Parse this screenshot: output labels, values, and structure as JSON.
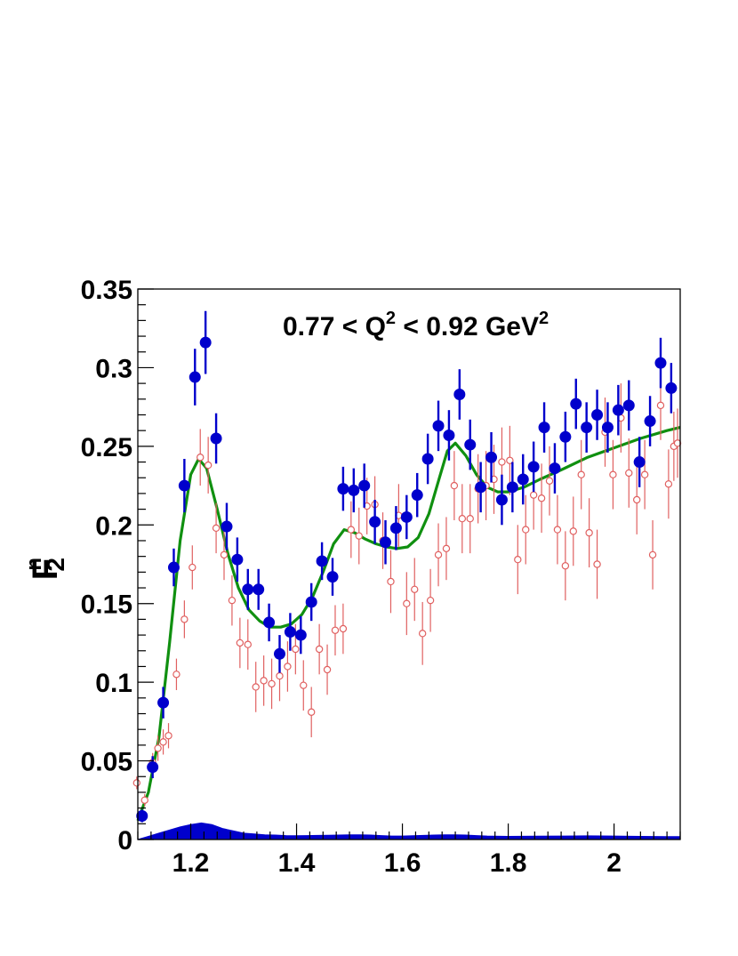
{
  "chart_data": {
    "type": "scatter",
    "annotation": {
      "prefix": "0.77 < Q",
      "sup1": "2",
      "middle": " < 0.92 GeV",
      "sup2": "2"
    },
    "ylabel": {
      "main": "F",
      "sup": "n",
      "sub": "2"
    },
    "xlabel": "",
    "xlim": [
      1.1,
      2.125
    ],
    "ylim": [
      0,
      0.35
    ],
    "x_ticks": [
      "1.2",
      "1.4",
      "1.6",
      "1.8",
      "2"
    ],
    "x_tick_values": [
      1.2,
      1.4,
      1.6,
      1.8,
      2.0
    ],
    "y_ticks": [
      "0",
      "0.05",
      "0.1",
      "0.15",
      "0.2",
      "0.25",
      "0.3",
      "0.35"
    ],
    "y_tick_values": [
      0,
      0.05,
      0.1,
      0.15,
      0.2,
      0.25,
      0.3,
      0.35
    ],
    "colors": {
      "series_a": "#0000cc",
      "series_b": "#e06060",
      "curve": "#109010",
      "band": "#0000cc"
    },
    "series": [
      {
        "marker": "filled-circle",
        "color": "#0000cc",
        "points": [
          [
            1.108,
            0.015,
            0.004
          ],
          [
            1.128,
            0.046,
            0.007
          ],
          [
            1.148,
            0.087,
            0.01
          ],
          [
            1.168,
            0.173,
            0.012
          ],
          [
            1.188,
            0.225,
            0.017
          ],
          [
            1.208,
            0.294,
            0.018
          ],
          [
            1.228,
            0.316,
            0.02
          ],
          [
            1.248,
            0.255,
            0.016
          ],
          [
            1.268,
            0.199,
            0.015
          ],
          [
            1.288,
            0.178,
            0.014
          ],
          [
            1.308,
            0.159,
            0.013
          ],
          [
            1.328,
            0.159,
            0.013
          ],
          [
            1.348,
            0.138,
            0.012
          ],
          [
            1.368,
            0.118,
            0.012
          ],
          [
            1.388,
            0.132,
            0.012
          ],
          [
            1.408,
            0.13,
            0.012
          ],
          [
            1.428,
            0.151,
            0.012
          ],
          [
            1.448,
            0.177,
            0.012
          ],
          [
            1.468,
            0.167,
            0.012
          ],
          [
            1.488,
            0.223,
            0.014
          ],
          [
            1.508,
            0.222,
            0.014
          ],
          [
            1.528,
            0.225,
            0.014
          ],
          [
            1.548,
            0.202,
            0.014
          ],
          [
            1.568,
            0.189,
            0.014
          ],
          [
            1.588,
            0.198,
            0.014
          ],
          [
            1.608,
            0.205,
            0.014
          ],
          [
            1.628,
            0.219,
            0.014
          ],
          [
            1.648,
            0.242,
            0.016
          ],
          [
            1.668,
            0.263,
            0.016
          ],
          [
            1.688,
            0.257,
            0.016
          ],
          [
            1.708,
            0.283,
            0.016
          ],
          [
            1.728,
            0.251,
            0.016
          ],
          [
            1.748,
            0.224,
            0.016
          ],
          [
            1.768,
            0.243,
            0.016
          ],
          [
            1.788,
            0.216,
            0.016
          ],
          [
            1.808,
            0.224,
            0.016
          ],
          [
            1.828,
            0.229,
            0.016
          ],
          [
            1.848,
            0.237,
            0.016
          ],
          [
            1.868,
            0.262,
            0.016
          ],
          [
            1.888,
            0.236,
            0.016
          ],
          [
            1.908,
            0.256,
            0.016
          ],
          [
            1.928,
            0.277,
            0.016
          ],
          [
            1.948,
            0.262,
            0.016
          ],
          [
            1.968,
            0.27,
            0.016
          ],
          [
            1.988,
            0.262,
            0.016
          ],
          [
            2.008,
            0.273,
            0.016
          ],
          [
            2.028,
            0.276,
            0.016
          ],
          [
            2.048,
            0.24,
            0.016
          ],
          [
            2.068,
            0.266,
            0.016
          ],
          [
            2.088,
            0.303,
            0.016
          ],
          [
            2.108,
            0.287,
            0.016
          ]
        ]
      },
      {
        "marker": "open-circle",
        "color": "#e06060",
        "points": [
          [
            1.098,
            0.036,
            0.004
          ],
          [
            1.113,
            0.025,
            0.004
          ],
          [
            1.128,
            0.049,
            0.006
          ],
          [
            1.138,
            0.058,
            0.008
          ],
          [
            1.148,
            0.062,
            0.008
          ],
          [
            1.158,
            0.066,
            0.008
          ],
          [
            1.173,
            0.105,
            0.01
          ],
          [
            1.188,
            0.14,
            0.012
          ],
          [
            1.203,
            0.173,
            0.014
          ],
          [
            1.218,
            0.243,
            0.018
          ],
          [
            1.233,
            0.238,
            0.018
          ],
          [
            1.248,
            0.198,
            0.016
          ],
          [
            1.263,
            0.181,
            0.016
          ],
          [
            1.278,
            0.152,
            0.016
          ],
          [
            1.293,
            0.125,
            0.016
          ],
          [
            1.308,
            0.124,
            0.016
          ],
          [
            1.323,
            0.097,
            0.016
          ],
          [
            1.338,
            0.101,
            0.016
          ],
          [
            1.353,
            0.099,
            0.016
          ],
          [
            1.368,
            0.104,
            0.016
          ],
          [
            1.383,
            0.11,
            0.016
          ],
          [
            1.398,
            0.121,
            0.016
          ],
          [
            1.413,
            0.098,
            0.016
          ],
          [
            1.428,
            0.081,
            0.016
          ],
          [
            1.443,
            0.121,
            0.016
          ],
          [
            1.458,
            0.108,
            0.016
          ],
          [
            1.473,
            0.133,
            0.016
          ],
          [
            1.488,
            0.134,
            0.016
          ],
          [
            1.503,
            0.197,
            0.018
          ],
          [
            1.518,
            0.193,
            0.018
          ],
          [
            1.533,
            0.212,
            0.018
          ],
          [
            1.548,
            0.213,
            0.018
          ],
          [
            1.563,
            0.19,
            0.018
          ],
          [
            1.578,
            0.164,
            0.02
          ],
          [
            1.593,
            0.206,
            0.02
          ],
          [
            1.608,
            0.15,
            0.02
          ],
          [
            1.623,
            0.159,
            0.02
          ],
          [
            1.638,
            0.131,
            0.02
          ],
          [
            1.653,
            0.152,
            0.02
          ],
          [
            1.668,
            0.181,
            0.02
          ],
          [
            1.683,
            0.185,
            0.02
          ],
          [
            1.698,
            0.225,
            0.022
          ],
          [
            1.713,
            0.204,
            0.022
          ],
          [
            1.728,
            0.204,
            0.022
          ],
          [
            1.743,
            0.223,
            0.022
          ],
          [
            1.758,
            0.225,
            0.022
          ],
          [
            1.773,
            0.229,
            0.022
          ],
          [
            1.788,
            0.24,
            0.022
          ],
          [
            1.803,
            0.241,
            0.022
          ],
          [
            1.818,
            0.178,
            0.022
          ],
          [
            1.833,
            0.197,
            0.022
          ],
          [
            1.848,
            0.219,
            0.022
          ],
          [
            1.863,
            0.217,
            0.022
          ],
          [
            1.878,
            0.228,
            0.022
          ],
          [
            1.893,
            0.197,
            0.022
          ],
          [
            1.908,
            0.174,
            0.022
          ],
          [
            1.923,
            0.196,
            0.022
          ],
          [
            1.938,
            0.232,
            0.022
          ],
          [
            1.953,
            0.195,
            0.022
          ],
          [
            1.968,
            0.175,
            0.022
          ],
          [
            1.983,
            0.259,
            0.022
          ],
          [
            1.998,
            0.232,
            0.022
          ],
          [
            2.013,
            0.268,
            0.022
          ],
          [
            2.028,
            0.233,
            0.022
          ],
          [
            2.043,
            0.216,
            0.022
          ],
          [
            2.058,
            0.232,
            0.022
          ],
          [
            2.073,
            0.181,
            0.022
          ],
          [
            2.088,
            0.276,
            0.022
          ],
          [
            2.103,
            0.226,
            0.022
          ],
          [
            2.113,
            0.25,
            0.022
          ],
          [
            2.12,
            0.252,
            0.022
          ]
        ]
      }
    ],
    "curve": [
      [
        1.1,
        0.012
      ],
      [
        1.12,
        0.03
      ],
      [
        1.14,
        0.065
      ],
      [
        1.16,
        0.125
      ],
      [
        1.18,
        0.19
      ],
      [
        1.2,
        0.232
      ],
      [
        1.215,
        0.242
      ],
      [
        1.23,
        0.236
      ],
      [
        1.25,
        0.21
      ],
      [
        1.27,
        0.182
      ],
      [
        1.29,
        0.16
      ],
      [
        1.31,
        0.146
      ],
      [
        1.33,
        0.139
      ],
      [
        1.35,
        0.135
      ],
      [
        1.37,
        0.135
      ],
      [
        1.39,
        0.137
      ],
      [
        1.41,
        0.143
      ],
      [
        1.43,
        0.154
      ],
      [
        1.45,
        0.17
      ],
      [
        1.47,
        0.188
      ],
      [
        1.49,
        0.197
      ],
      [
        1.51,
        0.195
      ],
      [
        1.53,
        0.191
      ],
      [
        1.55,
        0.188
      ],
      [
        1.57,
        0.186
      ],
      [
        1.59,
        0.185
      ],
      [
        1.61,
        0.186
      ],
      [
        1.63,
        0.192
      ],
      [
        1.65,
        0.207
      ],
      [
        1.67,
        0.23
      ],
      [
        1.685,
        0.247
      ],
      [
        1.7,
        0.252
      ],
      [
        1.72,
        0.244
      ],
      [
        1.74,
        0.232
      ],
      [
        1.76,
        0.224
      ],
      [
        1.78,
        0.221
      ],
      [
        1.8,
        0.221
      ],
      [
        1.83,
        0.224
      ],
      [
        1.86,
        0.229
      ],
      [
        1.9,
        0.235
      ],
      [
        1.95,
        0.243
      ],
      [
        2.0,
        0.249
      ],
      [
        2.05,
        0.255
      ],
      [
        2.1,
        0.26
      ],
      [
        2.125,
        0.262
      ]
    ],
    "band": [
      [
        1.1,
        0.0
      ],
      [
        1.12,
        0.002
      ],
      [
        1.14,
        0.004
      ],
      [
        1.16,
        0.006
      ],
      [
        1.18,
        0.008
      ],
      [
        1.2,
        0.0095
      ],
      [
        1.22,
        0.0105
      ],
      [
        1.24,
        0.0095
      ],
      [
        1.26,
        0.007
      ],
      [
        1.28,
        0.0055
      ],
      [
        1.3,
        0.004
      ],
      [
        1.32,
        0.0035
      ],
      [
        1.34,
        0.003
      ],
      [
        1.36,
        0.0028
      ],
      [
        1.38,
        0.0025
      ],
      [
        1.4,
        0.0024
      ],
      [
        1.42,
        0.0025
      ],
      [
        1.44,
        0.0026
      ],
      [
        1.46,
        0.0027
      ],
      [
        1.48,
        0.0028
      ],
      [
        1.5,
        0.003
      ],
      [
        1.52,
        0.003
      ],
      [
        1.54,
        0.0028
      ],
      [
        1.56,
        0.0025
      ],
      [
        1.58,
        0.0022
      ],
      [
        1.6,
        0.0022
      ],
      [
        1.62,
        0.0024
      ],
      [
        1.64,
        0.0026
      ],
      [
        1.66,
        0.0028
      ],
      [
        1.68,
        0.003
      ],
      [
        1.7,
        0.003
      ],
      [
        1.72,
        0.0028
      ],
      [
        1.74,
        0.0025
      ],
      [
        1.76,
        0.0022
      ],
      [
        1.8,
        0.002
      ],
      [
        1.85,
        0.0021
      ],
      [
        1.9,
        0.0022
      ],
      [
        1.95,
        0.0023
      ],
      [
        2.0,
        0.0022
      ],
      [
        2.05,
        0.002
      ],
      [
        2.1,
        0.0018
      ],
      [
        2.125,
        0.0018
      ]
    ],
    "grid": false,
    "legend": "none"
  }
}
